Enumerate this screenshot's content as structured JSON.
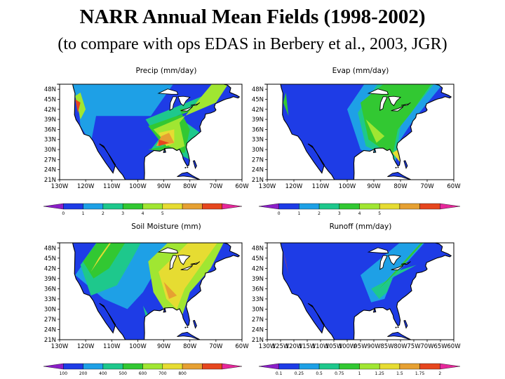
{
  "title": "NARR Annual Mean Fields (1998-2002)",
  "subtitle": "(to compare with ops EDAS in Berbery et al., 2003, JGR)",
  "colors": {
    "ocean": "#ffffff",
    "land": "#1e3ce6",
    "coast": "#000000"
  },
  "panels": [
    {
      "title": "Precip (mm/day)",
      "ylabels": [
        "48N",
        "45N",
        "42N",
        "39N",
        "36N",
        "33N",
        "30N",
        "27N",
        "24N",
        "21N"
      ],
      "xlabels": [
        "130W",
        "120W",
        "110W",
        "100W",
        "90W",
        "80W",
        "70W",
        "60W"
      ],
      "colorbar": {
        "labels": [
          "0",
          "1",
          "2",
          "3",
          "4",
          "5"
        ],
        "colors": [
          "#8c1ec8",
          "#1e3ce6",
          "#1ea0e6",
          "#1ec88c",
          "#32c832",
          "#a0e632",
          "#e6dc32",
          "#e6a032",
          "#e6461e",
          "#e6289b"
        ]
      },
      "fields": [
        {
          "color": "#1ea0e6",
          "shape": "N 48 75 W 125 60 W 122 37 W 118 32 W 116 40 E 95 40 N 48 92 W 130 53 W 125 45"
        },
        {
          "color": "#1ec88c",
          "shape": "E 97 39 E 92 33 W 95 30 W 88 30 E 80 27 E 76 35 W 85 40 E 73 44 W 75 46"
        },
        {
          "color": "#32c832",
          "shape": "E 96 37 E 90 31 W 96 30 E 82 29 W 80 36 W 84 42 E 74 43"
        },
        {
          "color": "#a0e632",
          "shape": "E 94 36 E 88 31 E 85 30 E 82 31 W 84 38 N 42 77 E 70 44"
        },
        {
          "color": "#e6dc32",
          "shape": "E 92 35 E 89 31 E 86 32 W 86 36"
        },
        {
          "color": "#e6a032",
          "shape": "E 91 34 W 93 31 W 86 32 W 88 35"
        },
        {
          "color": "#e6461e",
          "shape": "E 92 33 W 92 31 W 88 32"
        },
        {
          "color": "#a0e632",
          "shape": "W 124 46 W 122 39 W 120 42 W 122 47"
        },
        {
          "color": "#e6461e",
          "shape": "W 124 45 W 123 41 W 122 44"
        }
      ]
    },
    {
      "title": "Evap (mm/day)",
      "ylabels": [
        "48N",
        "45N",
        "42N",
        "39N",
        "36N",
        "33N",
        "30N",
        "27N",
        "24N",
        "21N"
      ],
      "xlabels": [
        "130W",
        "120W",
        "110W",
        "100W",
        "90W",
        "80W",
        "70W",
        "60W"
      ],
      "colorbar": {
        "labels": [
          "0",
          "1",
          "2",
          "3",
          "4",
          "5"
        ],
        "colors": [
          "#8c1ec8",
          "#1e3ce6",
          "#1ea0e6",
          "#1ec88c",
          "#32c832",
          "#a0e632",
          "#e6dc32",
          "#e6a032",
          "#e6461e",
          "#e6289b"
        ]
      },
      "fields": [
        {
          "color": "#1ea0e6",
          "shape": "N 48 103 E 100 42 E 95 30 E 82 26 W 80 33 E 75 39 N 45 68"
        },
        {
          "color": "#1ec88c",
          "shape": "N 48 96 E 96 41 E 93 31 E 82 27 W 80 37 N 46 71"
        },
        {
          "color": "#32c832",
          "shape": "E 95 44 E 92 33 E 83 28 W 81 36 E 76 41 N 45 76"
        },
        {
          "color": "#a0e632",
          "shape": "E 93 39 E 89 32 W 86 34"
        },
        {
          "color": "#e6dc32",
          "shape": "E 83 29 W 80 26 W 81 30"
        },
        {
          "color": "#32c832",
          "shape": "W 123 47 W 122 40 W 124 44"
        }
      ]
    },
    {
      "title": "Soil Moisture (mm)",
      "ylabels": [
        "48N",
        "45N",
        "42N",
        "39N",
        "36N",
        "33N",
        "30N",
        "27N",
        "24N",
        "21N"
      ],
      "xlabels": [
        "130W",
        "120W",
        "110W",
        "100W",
        "90W",
        "80W",
        "70W",
        "60W"
      ],
      "colorbar": {
        "labels": [
          "100",
          "200",
          "400",
          "500",
          "600",
          "700",
          "800"
        ],
        "colors": [
          "#8c1ec8",
          "#1e3ce6",
          "#1ea0e6",
          "#1ec88c",
          "#32c832",
          "#a0e632",
          "#e6dc32",
          "#e6a032",
          "#e6461e",
          "#e6289b"
        ]
      },
      "fields": [
        {
          "color": "#1ea0e6",
          "shape": "N 49 124 W 124 40 W 113 33 E 104 30 E 98 35 N 49 99"
        },
        {
          "color": "#1ec88c",
          "shape": "N 49 121 W 122 43 W 118 34 W 108 37 E 102 45"
        },
        {
          "color": "#32c832",
          "shape": "N 48 119 W 121 44 W 117 39 W 111 42"
        },
        {
          "color": "#a0e632",
          "shape": "E 96 44 E 94 35 E 90 30 E 83 28 W 80 35 E 72 42 N 47 80"
        },
        {
          "color": "#e6dc32",
          "shape": "E 92 41 E 89 33 E 85 30 W 82 36 N 44 77"
        },
        {
          "color": "#e6dc32",
          "shape": "N 47 119 W 118 41 W 115 45"
        },
        {
          "color": "#e6a032",
          "shape": "E 90 38 E 88 33 E 85 34"
        },
        {
          "color": "#1ec88c",
          "shape": "E 98 31 E 95 27 W 97 28"
        }
      ]
    },
    {
      "title": "Runoff (mm/day)",
      "ylabels": [
        "48N",
        "45N",
        "42N",
        "39N",
        "36N",
        "33N",
        "30N",
        "27N",
        "24N",
        "21N"
      ],
      "xlabels": [
        "130W",
        "125W",
        "120W",
        "115W",
        "110W",
        "105W",
        "100W",
        "95W",
        "90W",
        "85W",
        "80W",
        "75W",
        "70W",
        "65W",
        "60W"
      ],
      "colorbar": {
        "labels": [
          "0.1",
          "0.25",
          "0.5",
          "0.75",
          "1",
          "1.25",
          "1.5",
          "1.75",
          "2"
        ],
        "colors": [
          "#8c1ec8",
          "#1e3ce6",
          "#1ea0e6",
          "#1ec88c",
          "#32c832",
          "#a0e632",
          "#e6dc32",
          "#e6a032",
          "#e6461e",
          "#e6289b"
        ]
      },
      "fields": [
        {
          "color": "#1e3ce6",
          "shape": "E 97 44 E 93 36 E 91 30 E 84 29 W 80 34 N 45 70"
        },
        {
          "color": "#1ea0e6",
          "shape": "E 95 40 E 91 32 W 86 33 W 83 39 N 44 73"
        },
        {
          "color": "#1ec88c",
          "shape": "E 91 36 E 88 33 W 85 35 W 82 41 E 74 43"
        },
        {
          "color": "#32c832",
          "shape": "W 88 36 W 84 39 W 80 42 N 44 74"
        },
        {
          "color": "#e6dc32",
          "shape": "W 85 37 W 82 40"
        },
        {
          "color": "#e6461e",
          "shape": "W 124 47 W 122 40 W 123 44"
        },
        {
          "color": "#1ec88c",
          "shape": "W 123 46 W 121 42"
        }
      ]
    }
  ]
}
